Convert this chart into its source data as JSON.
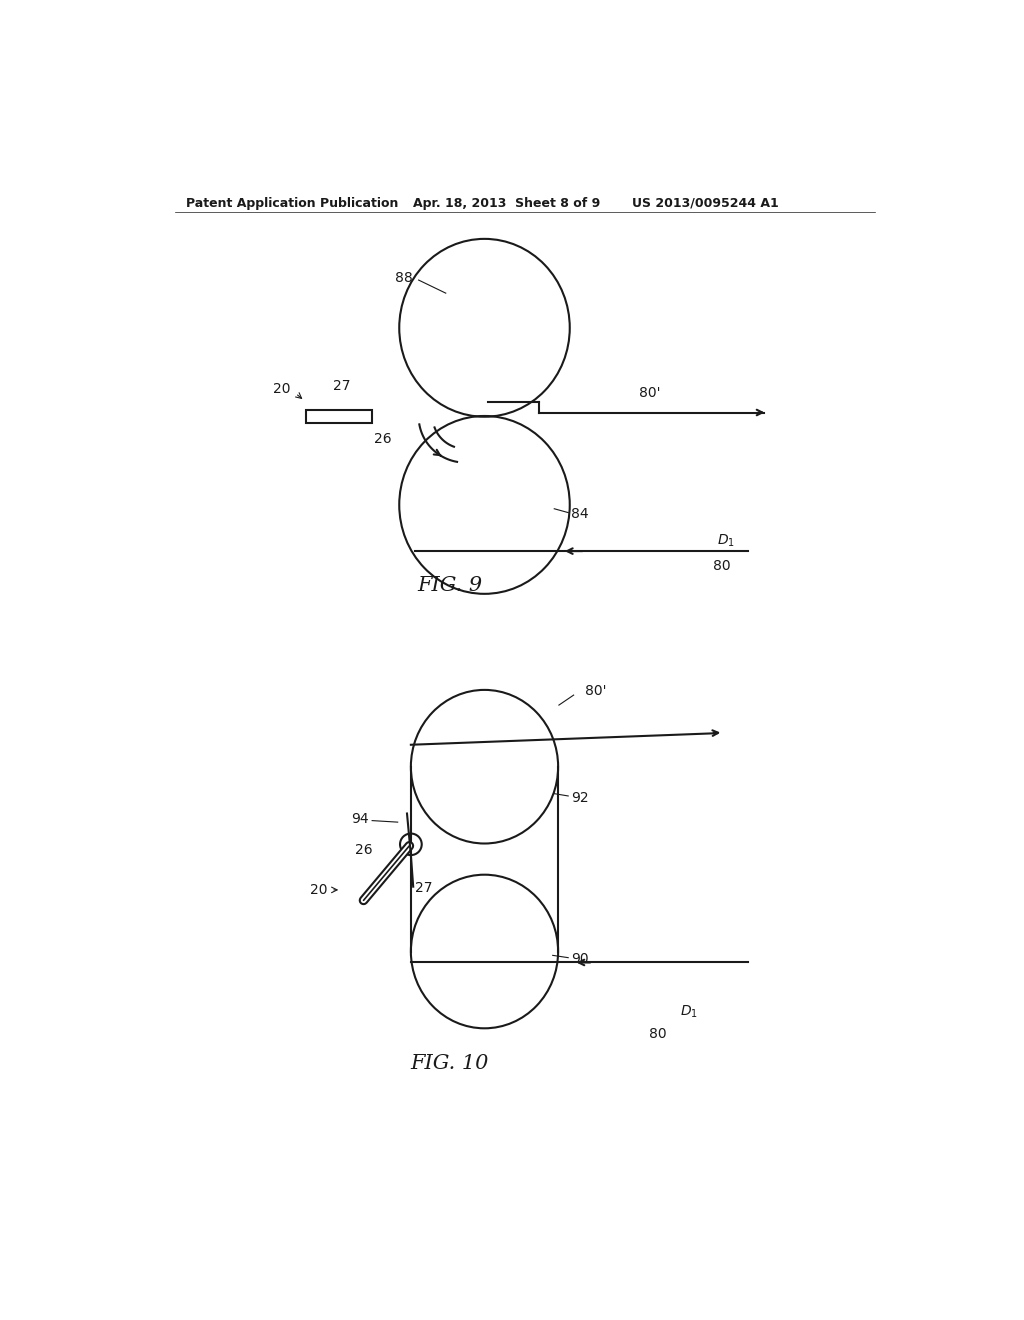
{
  "bg_color": "#ffffff",
  "line_color": "#1a1a1a",
  "text_color": "#1a1a1a",
  "header_text1": "Patent Application Publication",
  "header_text2": "Apr. 18, 2013  Sheet 8 of 9",
  "header_text3": "US 2013/0095244 A1"
}
